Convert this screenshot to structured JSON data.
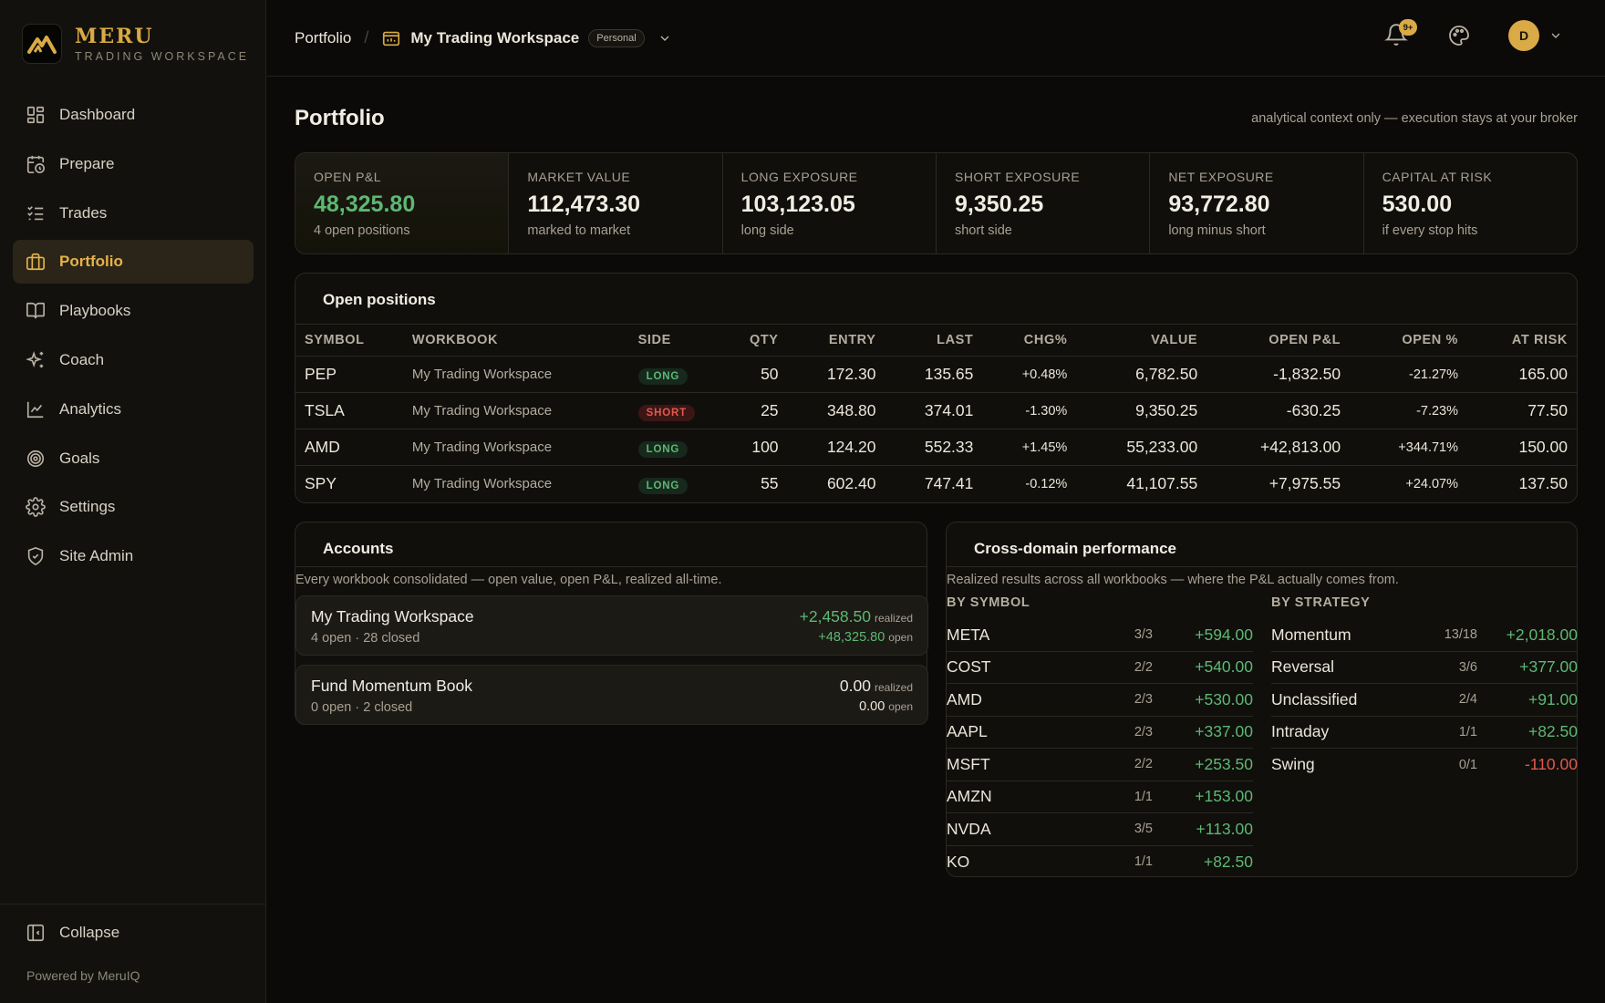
{
  "brand": {
    "name": "MERU",
    "subtitle": "TRADING WORKSPACE"
  },
  "sidebar": {
    "items": [
      {
        "label": "Dashboard",
        "icon": "grid-icon"
      },
      {
        "label": "Prepare",
        "icon": "calendar-clock-icon"
      },
      {
        "label": "Trades",
        "icon": "checklist-icon"
      },
      {
        "label": "Portfolio",
        "icon": "briefcase-icon",
        "active": true
      },
      {
        "label": "Playbooks",
        "icon": "book-icon"
      },
      {
        "label": "Coach",
        "icon": "sparkles-icon"
      },
      {
        "label": "Analytics",
        "icon": "line-chart-icon"
      },
      {
        "label": "Goals",
        "icon": "target-icon"
      },
      {
        "label": "Settings",
        "icon": "gear-icon"
      },
      {
        "label": "Site Admin",
        "icon": "shield-icon"
      }
    ],
    "collapse_label": "Collapse",
    "powered_by": "Powered by MeruIQ"
  },
  "topbar": {
    "breadcrumb_root": "Portfolio",
    "workspace_name": "My Trading Workspace",
    "workspace_badge": "Personal",
    "notification_count": "9+",
    "avatar_initial": "D"
  },
  "page": {
    "title": "Portfolio",
    "note": "analytical context only — execution stays at your broker"
  },
  "stats": [
    {
      "label": "OPEN P&L",
      "value": "48,325.80",
      "sub": "4 open positions",
      "positive": true
    },
    {
      "label": "MARKET VALUE",
      "value": "112,473.30",
      "sub": "marked to market"
    },
    {
      "label": "LONG EXPOSURE",
      "value": "103,123.05",
      "sub": "long side"
    },
    {
      "label": "SHORT EXPOSURE",
      "value": "9,350.25",
      "sub": "short side"
    },
    {
      "label": "NET EXPOSURE",
      "value": "93,772.80",
      "sub": "long minus short"
    },
    {
      "label": "CAPITAL AT RISK",
      "value": "530.00",
      "sub": "if every stop hits"
    }
  ],
  "positions": {
    "title": "Open positions",
    "columns": [
      "SYMBOL",
      "WORKBOOK",
      "SIDE",
      "QTY",
      "ENTRY",
      "LAST",
      "CHG%",
      "VALUE",
      "OPEN P&L",
      "OPEN %",
      "AT RISK"
    ],
    "rows": [
      {
        "symbol": "PEP",
        "workbook": "My Trading Workspace",
        "side": "LONG",
        "qty": "50",
        "entry": "172.30",
        "last": "135.65",
        "chg": "+0.48%",
        "value": "6,782.50",
        "pnl": "-1,832.50",
        "open_pct": "-21.27%",
        "at_risk": "165.00"
      },
      {
        "symbol": "TSLA",
        "workbook": "My Trading Workspace",
        "side": "SHORT",
        "qty": "25",
        "entry": "348.80",
        "last": "374.01",
        "chg": "-1.30%",
        "value": "9,350.25",
        "pnl": "-630.25",
        "open_pct": "-7.23%",
        "at_risk": "77.50"
      },
      {
        "symbol": "AMD",
        "workbook": "My Trading Workspace",
        "side": "LONG",
        "qty": "100",
        "entry": "124.20",
        "last": "552.33",
        "chg": "+1.45%",
        "value": "55,233.00",
        "pnl": "+42,813.00",
        "open_pct": "+344.71%",
        "at_risk": "150.00"
      },
      {
        "symbol": "SPY",
        "workbook": "My Trading Workspace",
        "side": "LONG",
        "qty": "55",
        "entry": "602.40",
        "last": "747.41",
        "chg": "-0.12%",
        "value": "41,107.55",
        "pnl": "+7,975.55",
        "open_pct": "+24.07%",
        "at_risk": "137.50"
      }
    ]
  },
  "accounts": {
    "title": "Accounts",
    "subtitle": "Every workbook consolidated — open value, open P&L, realized all-time.",
    "realized_label": "realized",
    "open_label": "open",
    "items": [
      {
        "name": "My Trading Workspace",
        "meta": "4 open · 28 closed",
        "realized": "+2,458.50",
        "open": "+48,325.80",
        "positive": true
      },
      {
        "name": "Fund Momentum Book",
        "meta": "0 open · 2 closed",
        "realized": "0.00",
        "open": "0.00",
        "positive": false
      }
    ]
  },
  "performance": {
    "title": "Cross-domain performance",
    "subtitle": "Realized results across all workbooks — where the P&L actually comes from.",
    "by_symbol_label": "BY SYMBOL",
    "by_strategy_label": "BY STRATEGY",
    "by_symbol": [
      {
        "name": "META",
        "count": "3/3",
        "value": "+594.00"
      },
      {
        "name": "COST",
        "count": "2/2",
        "value": "+540.00"
      },
      {
        "name": "AMD",
        "count": "2/3",
        "value": "+530.00"
      },
      {
        "name": "AAPL",
        "count": "2/3",
        "value": "+337.00"
      },
      {
        "name": "MSFT",
        "count": "2/2",
        "value": "+253.50"
      },
      {
        "name": "AMZN",
        "count": "1/1",
        "value": "+153.00"
      },
      {
        "name": "NVDA",
        "count": "3/5",
        "value": "+113.00"
      },
      {
        "name": "KO",
        "count": "1/1",
        "value": "+82.50"
      }
    ],
    "by_strategy": [
      {
        "name": "Momentum",
        "count": "13/18",
        "value": "+2,018.00"
      },
      {
        "name": "Reversal",
        "count": "3/6",
        "value": "+377.00"
      },
      {
        "name": "Unclassified",
        "count": "2/4",
        "value": "+91.00"
      },
      {
        "name": "Intraday",
        "count": "1/1",
        "value": "+82.50"
      },
      {
        "name": "Swing",
        "count": "0/1",
        "value": "-110.00"
      }
    ]
  },
  "colors": {
    "accent": "#d9aa45",
    "positive": "#5db872",
    "negative": "#e2584e",
    "background": "#0b0a08"
  }
}
